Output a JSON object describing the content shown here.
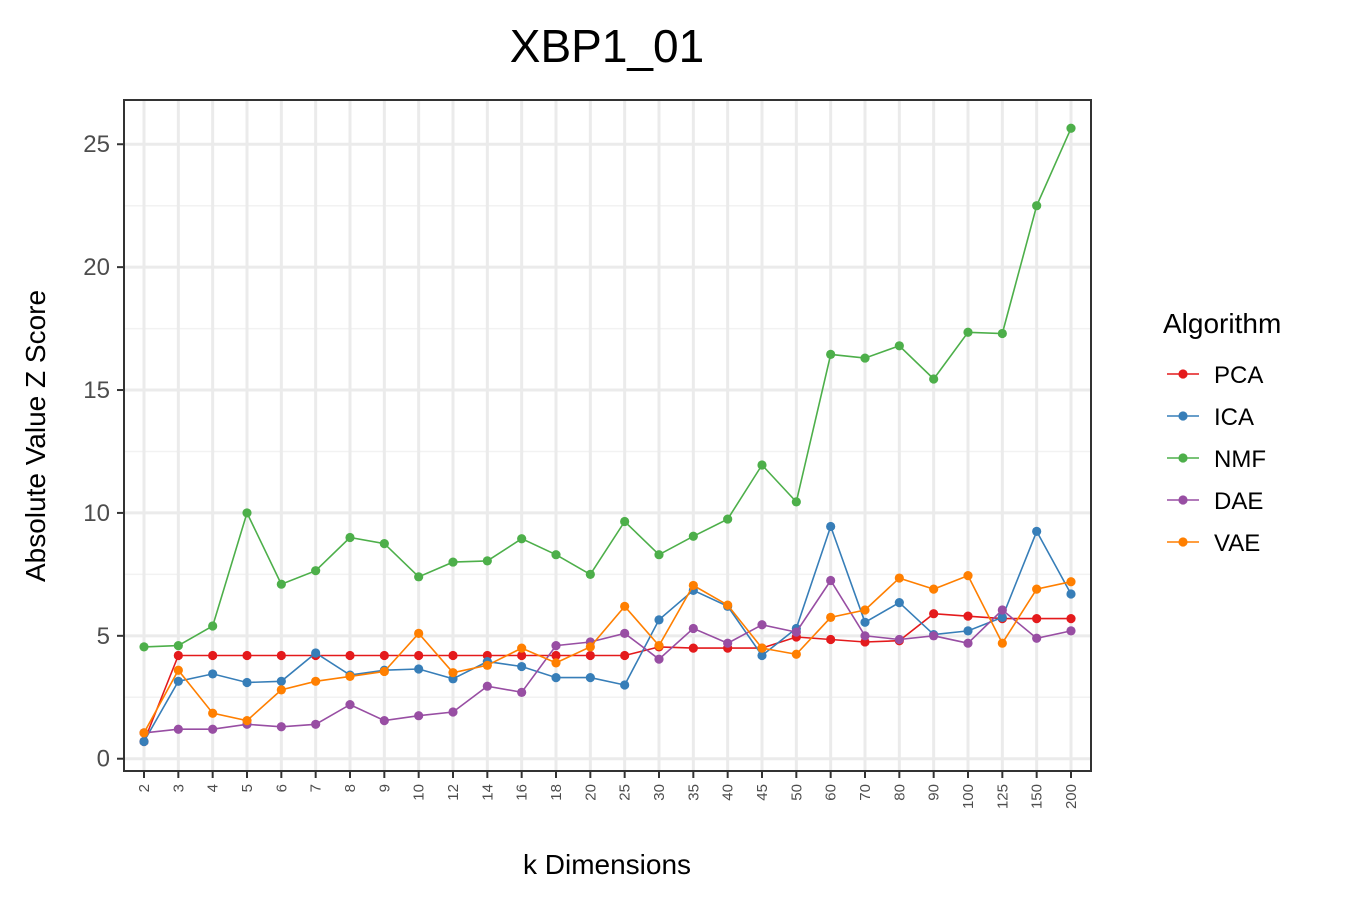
{
  "chart_data": {
    "type": "line",
    "title": "XBP1_01",
    "xlabel": "k Dimensions",
    "ylabel": "Absolute Value Z Score",
    "x": [
      "2",
      "3",
      "4",
      "5",
      "6",
      "7",
      "8",
      "9",
      "10",
      "12",
      "14",
      "16",
      "18",
      "20",
      "25",
      "30",
      "35",
      "40",
      "45",
      "50",
      "60",
      "70",
      "80",
      "90",
      "100",
      "125",
      "150",
      "200"
    ],
    "ylim": [
      -0.5,
      26.8
    ],
    "yticks": [
      0,
      5,
      10,
      15,
      20,
      25
    ],
    "grid": true,
    "legend": {
      "title": "Algorithm",
      "placement": "right"
    },
    "series": [
      {
        "name": "PCA",
        "color": "#e41a1c",
        "values": [
          0.7,
          4.2,
          4.2,
          4.2,
          4.2,
          4.2,
          4.2,
          4.2,
          4.2,
          4.2,
          4.2,
          4.2,
          4.2,
          4.2,
          4.2,
          4.55,
          4.5,
          4.5,
          4.5,
          4.95,
          4.85,
          4.75,
          4.8,
          5.9,
          5.8,
          5.7,
          5.7,
          5.7
        ]
      },
      {
        "name": "ICA",
        "color": "#377eb8",
        "values": [
          0.7,
          3.15,
          3.45,
          3.1,
          3.15,
          4.3,
          3.4,
          3.6,
          3.65,
          3.25,
          3.95,
          3.75,
          3.3,
          3.3,
          3.0,
          5.65,
          6.85,
          6.2,
          4.2,
          5.3,
          9.45,
          5.55,
          6.35,
          5.05,
          5.2,
          5.75,
          9.25,
          6.7
        ]
      },
      {
        "name": "NMF",
        "color": "#4daf4a",
        "values": [
          4.55,
          4.6,
          5.4,
          10.0,
          7.1,
          7.65,
          9.0,
          8.75,
          7.4,
          8.0,
          8.05,
          8.95,
          8.3,
          7.5,
          9.65,
          8.3,
          9.05,
          9.75,
          11.95,
          10.45,
          16.45,
          16.3,
          16.8,
          15.45,
          17.35,
          17.3,
          22.5,
          25.65
        ]
      },
      {
        "name": "DAE",
        "color": "#984ea3",
        "values": [
          1.05,
          1.2,
          1.2,
          1.4,
          1.3,
          1.4,
          2.2,
          1.55,
          1.75,
          1.9,
          2.95,
          2.7,
          4.6,
          4.75,
          5.1,
          4.05,
          5.3,
          4.7,
          5.45,
          5.15,
          7.25,
          5.0,
          4.85,
          5.0,
          4.7,
          6.05,
          4.9,
          5.2
        ]
      },
      {
        "name": "VAE",
        "color": "#ff7f00",
        "values": [
          1.05,
          3.6,
          1.85,
          1.55,
          2.8,
          3.15,
          3.35,
          3.55,
          5.1,
          3.5,
          3.8,
          4.5,
          3.9,
          4.55,
          6.2,
          4.6,
          7.05,
          6.25,
          4.5,
          4.25,
          5.75,
          6.05,
          7.35,
          6.9,
          7.45,
          4.7,
          6.9,
          7.2
        ]
      }
    ]
  }
}
